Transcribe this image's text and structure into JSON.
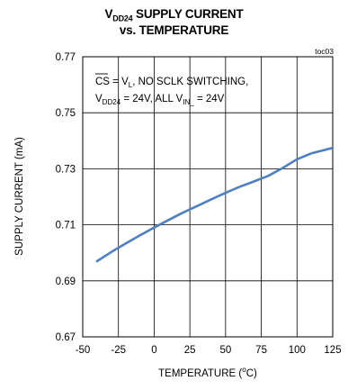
{
  "header": {
    "title_main": "V",
    "title_sub": "DD24",
    "title_rest": " SUPPLY CURRENT",
    "title_line2": "vs. TEMPERATURE",
    "tag": "toc03"
  },
  "annotation": {
    "line1_cs": "CS",
    "line1_eq": " = V",
    "line1_sub": "L",
    "line1_rest": ", NO SCLK SWITCHING,",
    "line2_v": "V",
    "line2_sub": "DD24",
    "line2_mid": " = 24V, ALL V",
    "line2_sub2": "IN_",
    "line2_rest": " = 24V"
  },
  "chart_data": {
    "type": "line",
    "xlabel_main": "TEMPERATURE (",
    "xlabel_sup": "o",
    "xlabel_end": "C)",
    "ylabel": "SUPPLY CURRENT (mA)",
    "xlim": [
      -50,
      125
    ],
    "ylim": [
      0.67,
      0.77
    ],
    "x_ticks": [
      "-50",
      "-25",
      "0",
      "25",
      "50",
      "75",
      "100",
      "125"
    ],
    "y_ticks": [
      "0.67",
      "0.69",
      "0.71",
      "0.73",
      "0.75",
      "0.77"
    ],
    "grid": true,
    "series": [
      {
        "color": "#4f7fbf",
        "x": [
          -40,
          -30,
          -20,
          -10,
          0,
          10,
          20,
          30,
          40,
          50,
          60,
          70,
          80,
          90,
          100,
          110,
          120,
          125
        ],
        "y": [
          0.697,
          0.7003,
          0.7033,
          0.7062,
          0.709,
          0.7117,
          0.7143,
          0.7167,
          0.7191,
          0.7214,
          0.7236,
          0.7255,
          0.7275,
          0.7303,
          0.7334,
          0.7355,
          0.7368,
          0.7375
        ]
      }
    ]
  }
}
